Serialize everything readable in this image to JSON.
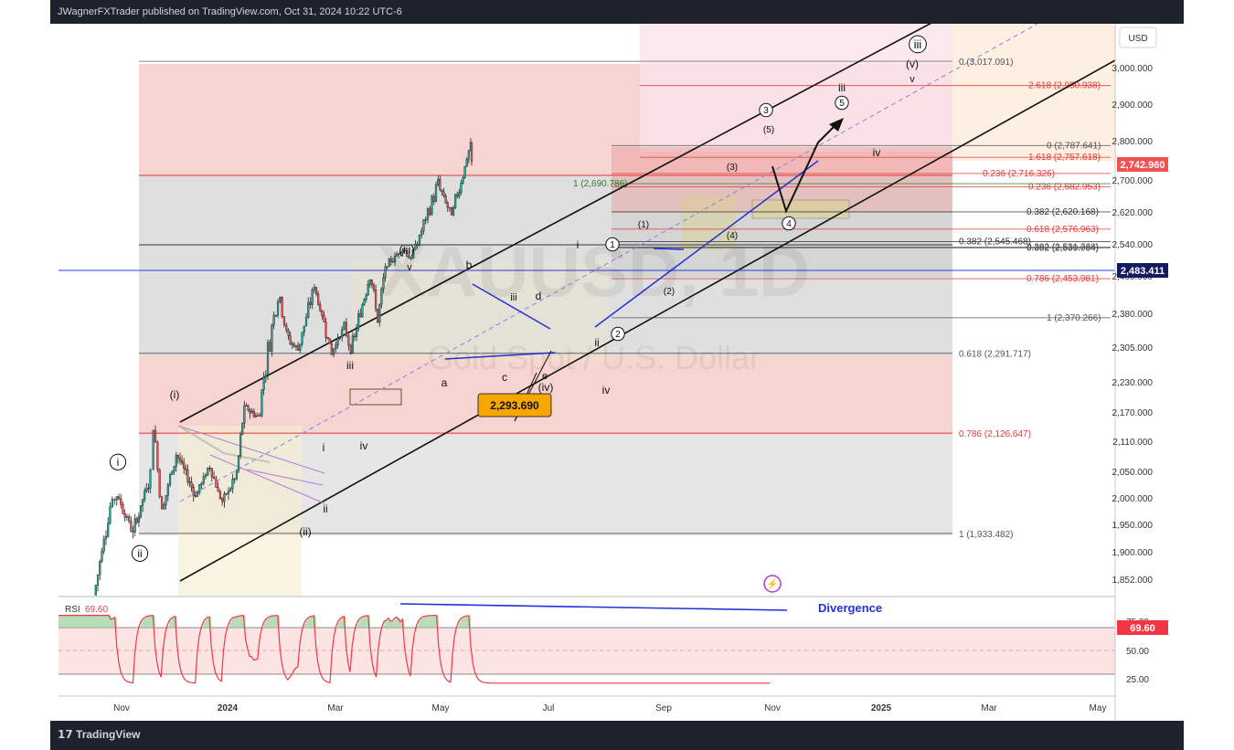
{
  "header": {
    "published": "JWagnerFXTrader published on TradingView.com, Oct 31, 2024 10:22 UTC-6"
  },
  "footer": {
    "brand": "TradingView"
  },
  "watermark": {
    "symbol": "XAUUSD, 1D",
    "name": "Gold Spot / U.S. Dollar"
  },
  "colors": {
    "up": "#26a69a",
    "down": "#ef5350",
    "candles": "#222222",
    "channel": "#111111",
    "trend": "#2330d8",
    "rsi": "#f23645",
    "fib_red": "#e53935",
    "fib_gray": "#555555"
  },
  "chart_data": [
    {
      "type": "candlestick",
      "currency": "USD",
      "x_ticks": [
        "Nov",
        "2024",
        "Mar",
        "May",
        "Jul",
        "Sep",
        "Nov",
        "2025",
        "Mar",
        "May"
      ],
      "y_ticks": [
        1852,
        1900,
        1950,
        2000,
        2050,
        2110,
        2170,
        2230,
        2305,
        2380,
        2460,
        2540,
        2620,
        2700,
        2800,
        2900,
        3000
      ],
      "y_tick_labels": [
        "1,852.000",
        "1,900.000",
        "1,950.000",
        "2,000.000",
        "2,050.000",
        "2,110.000",
        "2,170.000",
        "2,230.000",
        "2,305.000",
        "2,380.000",
        "2,460.000",
        "2,540.000",
        "2,620.000",
        "2,700.000",
        "2,800.000",
        "2,900.000",
        "3,000.000"
      ],
      "ylim": [
        1820,
        3080
      ],
      "last_price": "2,742.960",
      "horizontal_line_price": "2,483.411",
      "price_callout": "2,293.690",
      "price_path": [
        {
          "date": "2023-10-03",
          "close": 1820
        },
        {
          "date": "2023-10-20",
          "close": 1985
        },
        {
          "date": "2023-10-27",
          "close": 2005
        },
        {
          "date": "2023-11-13",
          "close": 1935
        },
        {
          "date": "2023-12-01",
          "close": 2045
        },
        {
          "date": "2023-12-04",
          "close": 2145
        },
        {
          "date": "2023-12-13",
          "close": 1975
        },
        {
          "date": "2023-12-28",
          "close": 2085
        },
        {
          "date": "2024-01-17",
          "close": 2005
        },
        {
          "date": "2024-02-01",
          "close": 2060
        },
        {
          "date": "2024-02-14",
          "close": 1990
        },
        {
          "date": "2024-02-29",
          "close": 2045
        },
        {
          "date": "2024-03-08",
          "close": 2180
        },
        {
          "date": "2024-03-22",
          "close": 2160
        },
        {
          "date": "2024-04-12",
          "close": 2430
        },
        {
          "date": "2024-04-23",
          "close": 2320
        },
        {
          "date": "2024-05-03",
          "close": 2300
        },
        {
          "date": "2024-05-20",
          "close": 2440
        },
        {
          "date": "2024-06-07",
          "close": 2295
        },
        {
          "date": "2024-06-20",
          "close": 2350
        },
        {
          "date": "2024-06-27",
          "close": 2295
        },
        {
          "date": "2024-07-17",
          "close": 2470
        },
        {
          "date": "2024-07-25",
          "close": 2365
        },
        {
          "date": "2024-08-02",
          "close": 2480
        },
        {
          "date": "2024-08-20",
          "close": 2530
        },
        {
          "date": "2024-08-29",
          "close": 2500
        },
        {
          "date": "2024-09-26",
          "close": 2690
        },
        {
          "date": "2024-10-10",
          "close": 2610
        },
        {
          "date": "2024-10-30",
          "close": 2790
        },
        {
          "date": "2024-10-31",
          "close": 2742.96
        }
      ],
      "fib_levels_left": [
        {
          "label": "0 (3,017.091)",
          "price": 3017.091
        },
        {
          "label": "0.618 (2,291.717)",
          "price": 2291.717
        },
        {
          "label": "0.786 (2,126.647)",
          "price": 2126.647
        },
        {
          "label": "1 (1,933.482)",
          "price": 1933.482
        }
      ],
      "fib_levels_right": [
        {
          "label": "2.618 (2,950.938)",
          "price": 2950.938
        },
        {
          "label": "0 (2,787.641)",
          "price": 2787.641
        },
        {
          "label": "1.618 (2,757.618)",
          "price": 2757.618
        },
        {
          "label": "0.236 (2,716.326)",
          "price": 2716.326
        },
        {
          "label": "0.236 (2,682.953)",
          "price": 2682.953
        },
        {
          "label": "1 (2,690.786)",
          "price": 2690.786
        },
        {
          "label": "0.382 (2,620.168)",
          "price": 2620.168
        },
        {
          "label": "0.382 (2,545.468)",
          "price": 2545.468
        },
        {
          "label": "0.618 (2,576.963)",
          "price": 2576.963
        },
        {
          "label": "0.382 (2,531.768)",
          "price": 2531.768
        },
        {
          "label": "0.382 (2,530.084)",
          "price": 2530.084
        },
        {
          "label": "0.786 (2,453.981)",
          "price": 2453.981
        },
        {
          "label": "1 (2,370.266)",
          "price": 2370.266
        }
      ],
      "wave_labels": [
        "(iii)",
        "v",
        "(i)",
        "i",
        "ii",
        "iii",
        "iv",
        "(ii)",
        "i",
        "ii",
        "iii",
        "iv",
        "(iv)",
        "a",
        "b",
        "c",
        "d",
        "e",
        "i",
        "ii",
        "1",
        "2",
        "3",
        "4",
        "5",
        "(1)",
        "(2)",
        "(3)",
        "(4)",
        "(5)",
        "iii",
        "iv",
        "v",
        "(v)",
        "iii"
      ]
    },
    {
      "type": "line",
      "title": "RSI",
      "last_value": "69.60",
      "y_ticks": [
        "75.00",
        "50.00",
        "25.00"
      ],
      "annotation": "Divergence"
    }
  ]
}
